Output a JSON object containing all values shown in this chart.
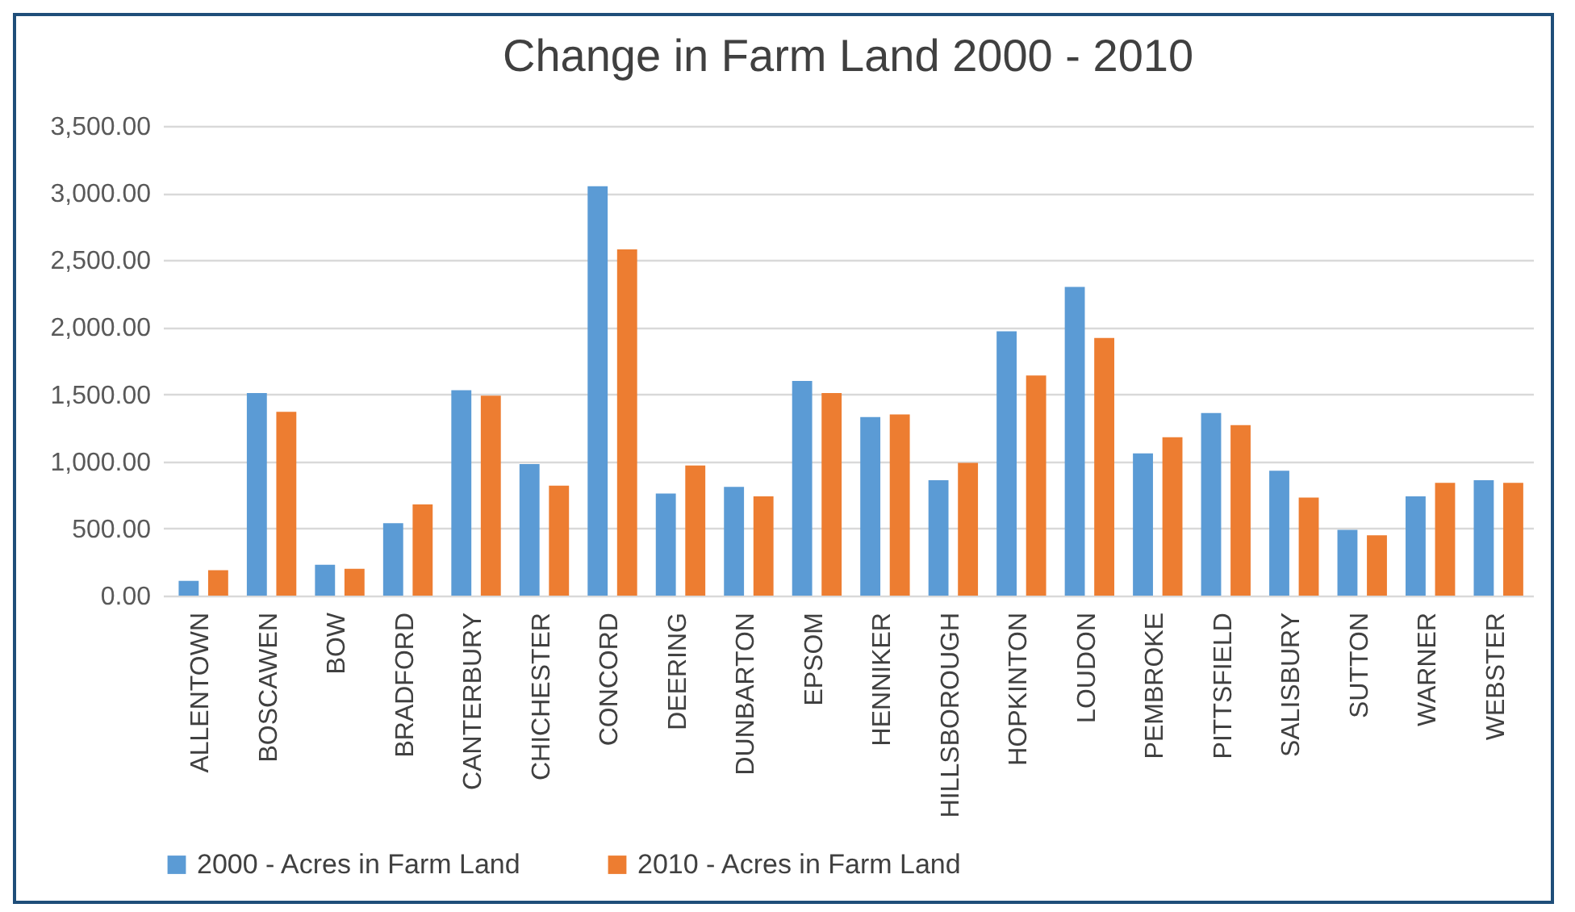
{
  "chart_data": {
    "type": "bar",
    "title": "Change in Farm Land 2000 - 2010",
    "categories": [
      "ALLENTOWN",
      "BOSCAWEN",
      "BOW",
      "BRADFORD",
      "CANTERBURY",
      "CHICHESTER",
      "CONCORD",
      "DEERING",
      "DUNBARTON",
      "EPSOM",
      "HENNIKER",
      "HILLSBOROUGH",
      "HOPKINTON",
      "LOUDON",
      "PEMBROKE",
      "PITTSFIELD",
      "SALISBURY",
      "SUTTON",
      "WARNER",
      "WEBSTER"
    ],
    "series": [
      {
        "name": "2000 - Acres in Farm Land",
        "color": "#5b9bd5",
        "values": [
          110,
          1510,
          230,
          540,
          1530,
          980,
          3050,
          760,
          810,
          1600,
          1330,
          860,
          1970,
          2300,
          1060,
          1360,
          930,
          490,
          740,
          860
        ]
      },
      {
        "name": "2010 - Acres in Farm Land",
        "color": "#ed7d31",
        "values": [
          190,
          1370,
          200,
          680,
          1490,
          820,
          2580,
          970,
          740,
          1510,
          1350,
          990,
          1640,
          1920,
          1180,
          1270,
          730,
          450,
          840,
          840
        ]
      }
    ],
    "ylim": [
      0,
      3500
    ],
    "yticks": [
      {
        "value": 0,
        "label": "0.00"
      },
      {
        "value": 500,
        "label": "500.00"
      },
      {
        "value": 1000,
        "label": "1,000.00"
      },
      {
        "value": 1500,
        "label": "1,500.00"
      },
      {
        "value": 2000,
        "label": "2,000.00"
      },
      {
        "value": 2500,
        "label": "2,500.00"
      },
      {
        "value": 3000,
        "label": "3,000.00"
      },
      {
        "value": 3500,
        "label": "3,500.00"
      }
    ],
    "grid": "y",
    "legend": "bottom"
  }
}
